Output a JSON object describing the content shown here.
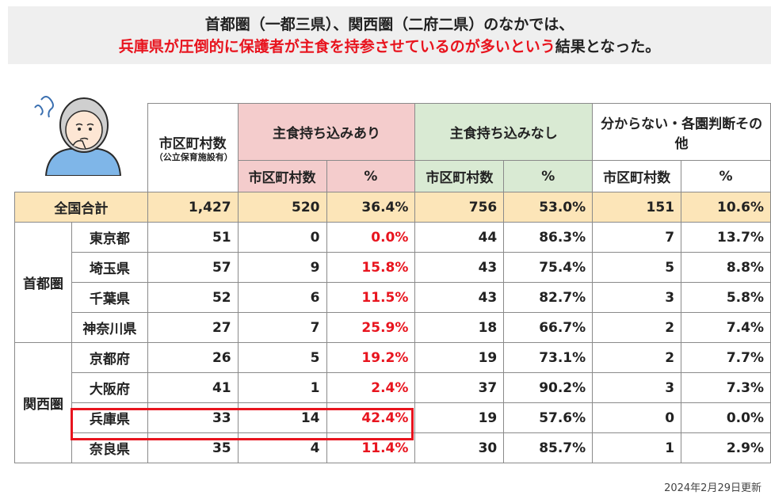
{
  "banner": {
    "line1": "首都圏（一都三県）、関西圏（二府二県）のなかでは、",
    "line2_red": "兵庫県が圧倒的に保護者が主食を持参させているのが多いという",
    "line2_tail": "結果となった。"
  },
  "header": {
    "municipalities": "市区町村数",
    "municipalities_note": "（公立保育施設有）",
    "group_yes": "主食持ち込みあり",
    "group_no": "主食持ち込みなし",
    "group_other": "分からない・各園判断その他",
    "sub_count": "市区町村数",
    "sub_pct": "%"
  },
  "total": {
    "label": "全国合計",
    "total": "1,427",
    "yes_n": "520",
    "yes_pct": "36.4%",
    "no_n": "756",
    "no_pct": "53.0%",
    "other_n": "151",
    "other_pct": "10.6%"
  },
  "regions": {
    "shutoken": "首都圏",
    "kansai": "関西圏"
  },
  "rows": [
    {
      "pref": "東京都",
      "total": "51",
      "yes_n": "0",
      "yes_pct": "0.0%",
      "no_n": "44",
      "no_pct": "86.3%",
      "other_n": "7",
      "other_pct": "13.7%"
    },
    {
      "pref": "埼玉県",
      "total": "57",
      "yes_n": "9",
      "yes_pct": "15.8%",
      "no_n": "43",
      "no_pct": "75.4%",
      "other_n": "5",
      "other_pct": "8.8%"
    },
    {
      "pref": "千葉県",
      "total": "52",
      "yes_n": "6",
      "yes_pct": "11.5%",
      "no_n": "43",
      "no_pct": "82.7%",
      "other_n": "3",
      "other_pct": "5.8%"
    },
    {
      "pref": "神奈川県",
      "total": "27",
      "yes_n": "7",
      "yes_pct": "25.9%",
      "no_n": "18",
      "no_pct": "66.7%",
      "other_n": "2",
      "other_pct": "7.4%"
    },
    {
      "pref": "京都府",
      "total": "26",
      "yes_n": "5",
      "yes_pct": "19.2%",
      "no_n": "19",
      "no_pct": "73.1%",
      "other_n": "2",
      "other_pct": "7.7%"
    },
    {
      "pref": "大阪府",
      "total": "41",
      "yes_n": "1",
      "yes_pct": "2.4%",
      "no_n": "37",
      "no_pct": "90.2%",
      "other_n": "3",
      "other_pct": "7.3%"
    },
    {
      "pref": "兵庫県",
      "total": "33",
      "yes_n": "14",
      "yes_pct": "42.4%",
      "no_n": "19",
      "no_pct": "57.6%",
      "other_n": "0",
      "other_pct": "0.0%"
    },
    {
      "pref": "奈良県",
      "total": "35",
      "yes_n": "4",
      "yes_pct": "11.4%",
      "no_n": "30",
      "no_pct": "85.7%",
      "other_n": "1",
      "other_pct": "2.9%"
    }
  ],
  "footer": "2024年2月29日更新",
  "colors": {
    "accent_red": "#e8141e",
    "pink": "#f4cccc",
    "green": "#d9ead3",
    "total_row": "#fce5b8"
  }
}
